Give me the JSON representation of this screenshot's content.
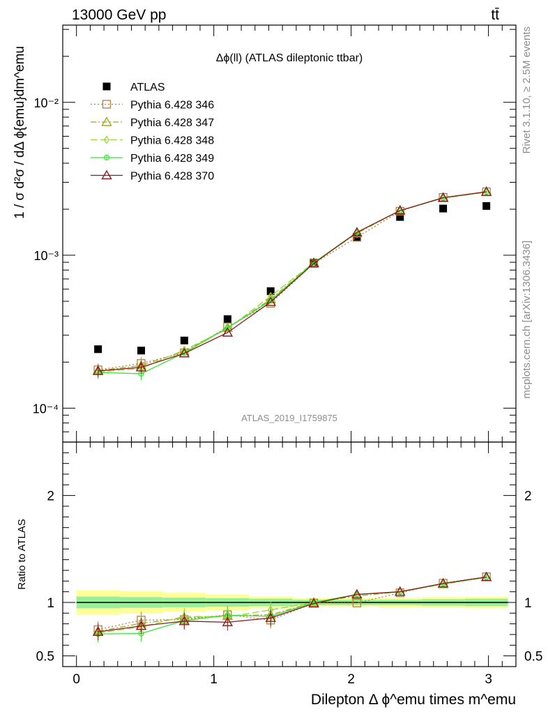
{
  "header": {
    "left": "13000 GeV pp",
    "right": "tt̄"
  },
  "side_labels": {
    "rivet": "Rivet 3.1.10, ≥ 2.5M events",
    "mcplots": "mcplots.cern.ch [arXiv:1306.3436]"
  },
  "chart_data": [
    {
      "type": "scatter",
      "panel": "main",
      "title": "Δϕ(ll) (ATLAS dileptonic ttbar)",
      "ylabel": "1 / σ  d²σ / dΔ ϕ{emu}dm^emu",
      "xlabel": "",
      "yscale": "log",
      "ylim": [
        6e-05,
        0.032
      ],
      "xlim": [
        -0.1,
        3.2
      ],
      "y_tick_labels": [
        "10⁻⁴",
        "10⁻³",
        "10⁻²"
      ],
      "analysis_label": "ATLAS_2019_I1759875",
      "legend_position": "top-left",
      "x": [
        0.157,
        0.471,
        0.785,
        1.1,
        1.414,
        1.728,
        2.042,
        2.356,
        2.67,
        2.985
      ],
      "series": [
        {
          "name": "ATLAS",
          "color": "#000000",
          "marker": "square-filled",
          "line": "none",
          "values": [
            0.000243,
            0.000238,
            0.000277,
            0.000382,
            0.000582,
            0.000895,
            0.00131,
            0.00178,
            0.00202,
            0.0021
          ]
        },
        {
          "name": "Pythia 6.428 346",
          "color": "#b08040",
          "marker": "square-open",
          "line": "dotted",
          "values": [
            0.000178,
            0.000196,
            0.00023,
            0.00034,
            0.000485,
            0.000885,
            0.00131,
            0.00194,
            0.00239,
            0.0026
          ]
        },
        {
          "name": "Pythia 6.428 347",
          "color": "#9aad20",
          "marker": "triangle-open",
          "line": "dashdot",
          "values": [
            0.000176,
            0.00019,
            0.000235,
            0.000335,
            0.000515,
            0.000895,
            0.00139,
            0.00196,
            0.00236,
            0.00259
          ]
        },
        {
          "name": "Pythia 6.428 348",
          "color": "#9ad33a",
          "marker": "diamond-open",
          "line": "longdash",
          "values": [
            0.000172,
            0.000182,
            0.00024,
            0.00033,
            0.00054,
            0.000895,
            0.00141,
            0.00196,
            0.00237,
            0.00259
          ]
        },
        {
          "name": "Pythia 6.428 349",
          "color": "#33e633",
          "marker": "circle-cross",
          "line": "solid",
          "values": [
            0.000171,
            0.000168,
            0.00023,
            0.000335,
            0.000505,
            0.000895,
            0.00141,
            0.00196,
            0.00237,
            0.0026
          ]
        },
        {
          "name": "Pythia 6.428 370",
          "color": "#8b1a1a",
          "marker": "triangle-open",
          "line": "solid",
          "values": [
            0.000175,
            0.000185,
            0.000228,
            0.000312,
            0.000495,
            0.000885,
            0.00141,
            0.00196,
            0.00238,
            0.0026
          ]
        }
      ]
    },
    {
      "type": "line",
      "panel": "ratio",
      "ylabel": "Ratio to ATLAS",
      "xlabel": "Dilepton Δ ϕ^emu times m^emu",
      "ylim": [
        0.4,
        2.5
      ],
      "xlim": [
        -0.1,
        3.2
      ],
      "y_tick_labels": [
        "0.5",
        "1",
        "2"
      ],
      "x_tick_labels": [
        "0",
        "1",
        "2",
        "3"
      ],
      "x": [
        0.157,
        0.471,
        0.785,
        1.1,
        1.414,
        1.728,
        2.042,
        2.356,
        2.67,
        2.985
      ],
      "band_inner_halfwidth": [
        0.055,
        0.05,
        0.045,
        0.04,
        0.035,
        0.025,
        0.025,
        0.025,
        0.03,
        0.035
      ],
      "band_outer_halfwidth": [
        0.115,
        0.105,
        0.09,
        0.075,
        0.055,
        0.04,
        0.04,
        0.045,
        0.05,
        0.055
      ],
      "series": [
        {
          "name": "Pythia 6.428 346",
          "values": [
            0.745,
            0.835,
            0.84,
            0.885,
            0.835,
            0.995,
            0.995,
            1.09,
            1.18,
            1.24
          ]
        },
        {
          "name": "Pythia 6.428 347",
          "values": [
            0.73,
            0.805,
            0.855,
            0.875,
            0.885,
            1.0,
            1.06,
            1.1,
            1.17,
            1.235
          ]
        },
        {
          "name": "Pythia 6.428 348",
          "values": [
            0.715,
            0.77,
            0.87,
            0.865,
            0.93,
            1.0,
            1.075,
            1.1,
            1.175,
            1.235
          ]
        },
        {
          "name": "Pythia 6.428 349",
          "values": [
            0.705,
            0.71,
            0.83,
            0.88,
            0.87,
            1.0,
            1.075,
            1.1,
            1.175,
            1.235
          ]
        },
        {
          "name": "Pythia 6.428 370",
          "values": [
            0.725,
            0.78,
            0.825,
            0.815,
            0.855,
            0.99,
            1.075,
            1.1,
            1.178,
            1.238
          ]
        }
      ]
    }
  ]
}
